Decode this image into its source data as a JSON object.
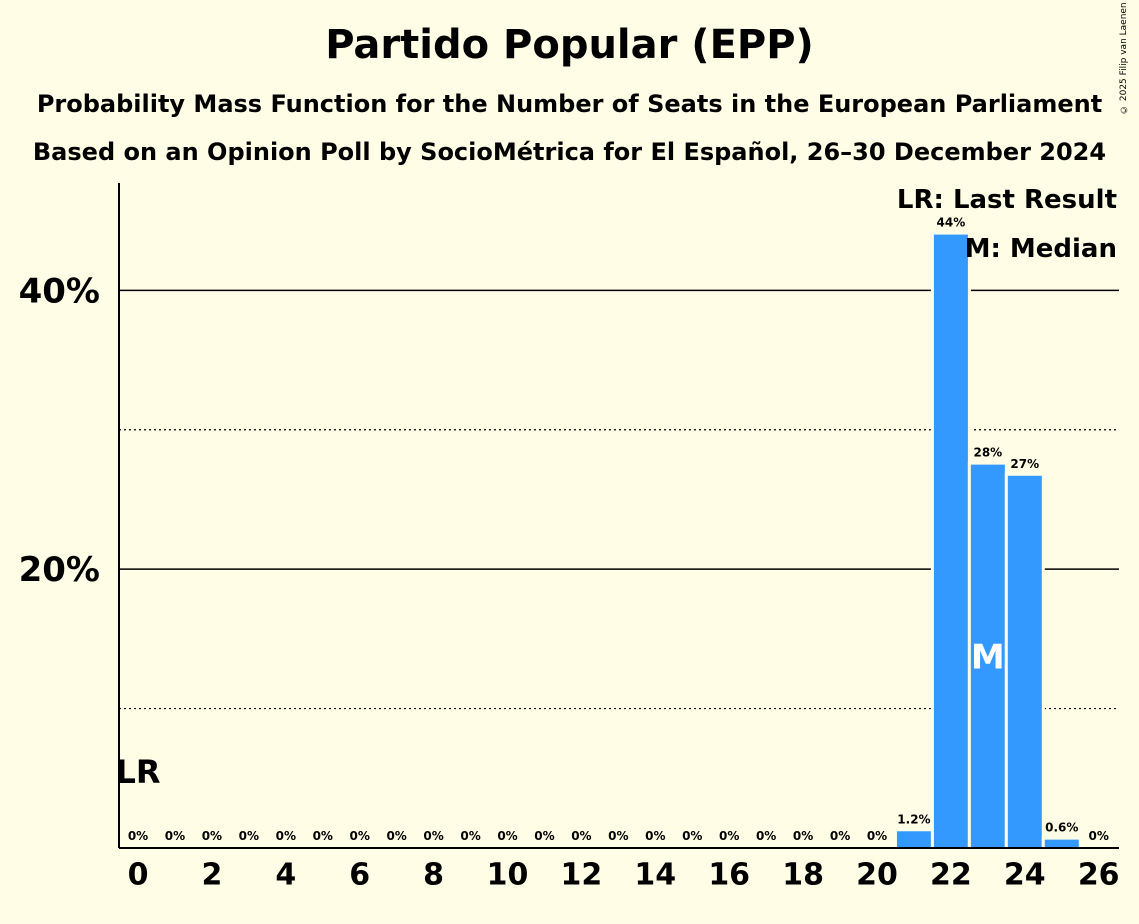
{
  "title": "Partido Popular (EPP)",
  "subtitle": "Probability Mass Function for the Number of Seats in the European Parliament",
  "subtitle2": "Based on an Opinion Poll by SocioMétrica for El Español, 26–30 December 2024",
  "copyright": "© 2025 Filip van Laenen",
  "legend": {
    "last_result": "LR: Last Result",
    "median": "M: Median"
  },
  "colors": {
    "bar": "#3399FF",
    "background": "#FFFDE6"
  },
  "chart_data": {
    "type": "bar",
    "x": [
      0,
      1,
      2,
      3,
      4,
      5,
      6,
      7,
      8,
      9,
      10,
      11,
      12,
      13,
      14,
      15,
      16,
      17,
      18,
      19,
      20,
      21,
      22,
      23,
      24,
      25,
      26
    ],
    "values": [
      0,
      0,
      0,
      0,
      0,
      0,
      0,
      0,
      0,
      0,
      0,
      0,
      0,
      0,
      0,
      0,
      0,
      0,
      0,
      0,
      0,
      1.2,
      44,
      27.5,
      26.7,
      0.6,
      0
    ],
    "value_labels": [
      "0%",
      "0%",
      "0%",
      "0%",
      "0%",
      "0%",
      "0%",
      "0%",
      "0%",
      "0%",
      "0%",
      "0%",
      "0%",
      "0%",
      "0%",
      "0%",
      "0%",
      "0%",
      "0%",
      "0%",
      "0%",
      "1.2%",
      "44%",
      "28%",
      "27%",
      "0.6%",
      "0%"
    ],
    "x_tick_labels": [
      "0",
      "2",
      "4",
      "6",
      "8",
      "10",
      "12",
      "14",
      "16",
      "18",
      "20",
      "22",
      "24",
      "26"
    ],
    "x_tick_values": [
      0,
      2,
      4,
      6,
      8,
      10,
      12,
      14,
      16,
      18,
      20,
      22,
      24,
      26
    ],
    "y_tick_labels": [
      "20%",
      "40%"
    ],
    "y_tick_values": [
      20,
      40
    ],
    "y_minor_gridlines": [
      10,
      30
    ],
    "ylim": [
      0,
      47.7
    ],
    "last_result_seat": 0,
    "last_result_label": "LR",
    "median_seat": 23,
    "median_label": "M",
    "legend_position": "top-right"
  }
}
